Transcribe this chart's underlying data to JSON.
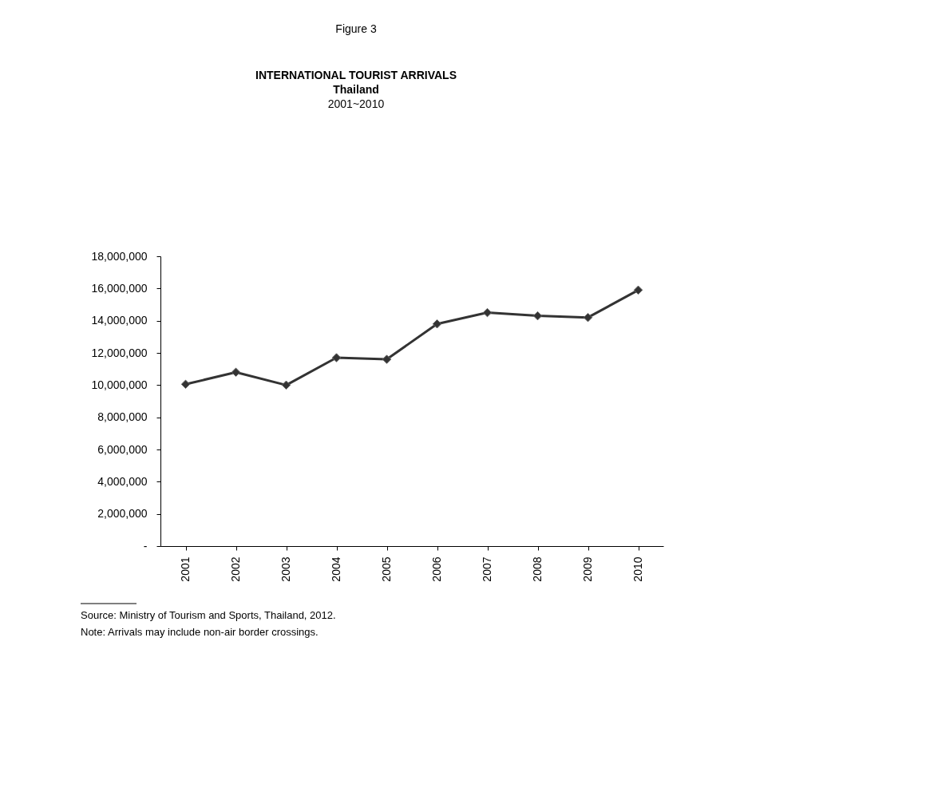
{
  "chart_data": {
    "type": "line",
    "title": "INTERNATIONAL TOURIST ARRIVALS",
    "subtitle": "Thailand\n2001~2010",
    "categories": [
      "2001",
      "2002",
      "2003",
      "2004",
      "2005",
      "2006",
      "2007",
      "2008",
      "2009",
      "2010"
    ],
    "series": [
      {
        "color": "#333333",
        "values": [
          10050000,
          10800000,
          10000000,
          11700000,
          11600000,
          13800000,
          14500000,
          14300000,
          14200000,
          15900000
        ]
      }
    ],
    "ylim": [
      0,
      18000000
    ],
    "yticks": [
      {
        "value": 0,
        "label": "-"
      },
      {
        "value": 2000000,
        "label": "2,000,000"
      },
      {
        "value": 4000000,
        "label": "4,000,000"
      },
      {
        "value": 6000000,
        "label": "6,000,000"
      },
      {
        "value": 8000000,
        "label": "8,000,000"
      },
      {
        "value": 10000000,
        "label": "10,000,000"
      },
      {
        "value": 12000000,
        "label": "12,000,000"
      },
      {
        "value": 14000000,
        "label": "14,000,000"
      },
      {
        "value": 16000000,
        "label": "16,000,000"
      },
      {
        "value": 18000000,
        "label": "18,000,000"
      }
    ],
    "marker": "diamond",
    "line_style": "solid",
    "grid": false,
    "annotations": [
      "Figure 3",
      "Source: Ministry of Tourism and Sports, Thailand, 2012.",
      "Note:  Arrivals may include non-air border crossings."
    ]
  }
}
